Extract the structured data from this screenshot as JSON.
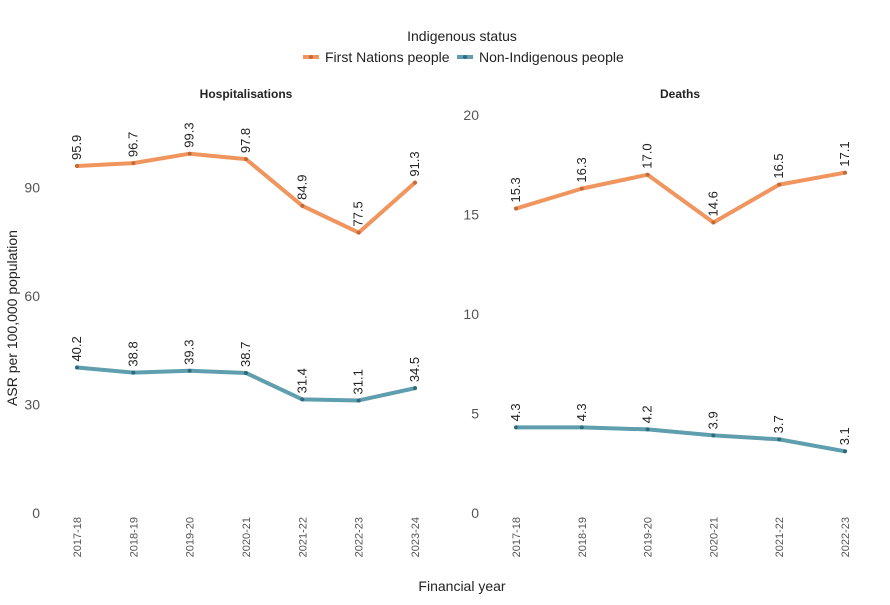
{
  "legend": {
    "title": "Indigenous status",
    "items": [
      {
        "label": "First Nations people",
        "color": "#F0955E"
      },
      {
        "label": "Non-Indigenous people",
        "color": "#5F9EAE"
      }
    ]
  },
  "axes": {
    "ylabel": "ASR per 100,000 population",
    "xlabel": "Financial year"
  },
  "chart_data": [
    {
      "type": "line",
      "title": "Hospitalisations",
      "categories": [
        "2017-18",
        "2018-19",
        "2019-20",
        "2020-21",
        "2021-22",
        "2022-23",
        "2023-24"
      ],
      "ylim": [
        0,
        110
      ],
      "yticks": [
        0,
        30,
        60,
        90
      ],
      "series": [
        {
          "name": "First Nations people",
          "color": "#F0955E",
          "values": [
            95.9,
            96.7,
            99.3,
            97.8,
            84.9,
            77.5,
            91.3
          ],
          "labels": [
            "95.9",
            "96.7",
            "99.3",
            "97.8",
            "84.9",
            "77.5",
            "91.3"
          ]
        },
        {
          "name": "Non-Indigenous people",
          "color": "#5F9EAE",
          "values": [
            40.2,
            38.8,
            39.3,
            38.7,
            31.4,
            31.1,
            34.5
          ],
          "labels": [
            "40.2",
            "38.8",
            "39.3",
            "38.7",
            "31.4",
            "31.1",
            "34.5"
          ]
        }
      ]
    },
    {
      "type": "line",
      "title": "Deaths",
      "categories": [
        "2017-18",
        "2018-19",
        "2019-20",
        "2020-21",
        "2021-22",
        "2022-23"
      ],
      "ylim": [
        0,
        20
      ],
      "yticks": [
        0,
        5,
        10,
        15,
        20
      ],
      "series": [
        {
          "name": "First Nations people",
          "color": "#F0955E",
          "values": [
            15.3,
            16.3,
            17.0,
            14.6,
            16.5,
            17.1
          ],
          "labels": [
            "15.3",
            "16.3",
            "17.0",
            "14.6",
            "16.5",
            "17.1"
          ]
        },
        {
          "name": "Non-Indigenous people",
          "color": "#5F9EAE",
          "values": [
            4.3,
            4.3,
            4.2,
            3.9,
            3.7,
            3.1
          ],
          "labels": [
            "4.3",
            "4.3",
            "4.2",
            "3.9",
            "3.7",
            "3.1"
          ]
        }
      ]
    }
  ]
}
